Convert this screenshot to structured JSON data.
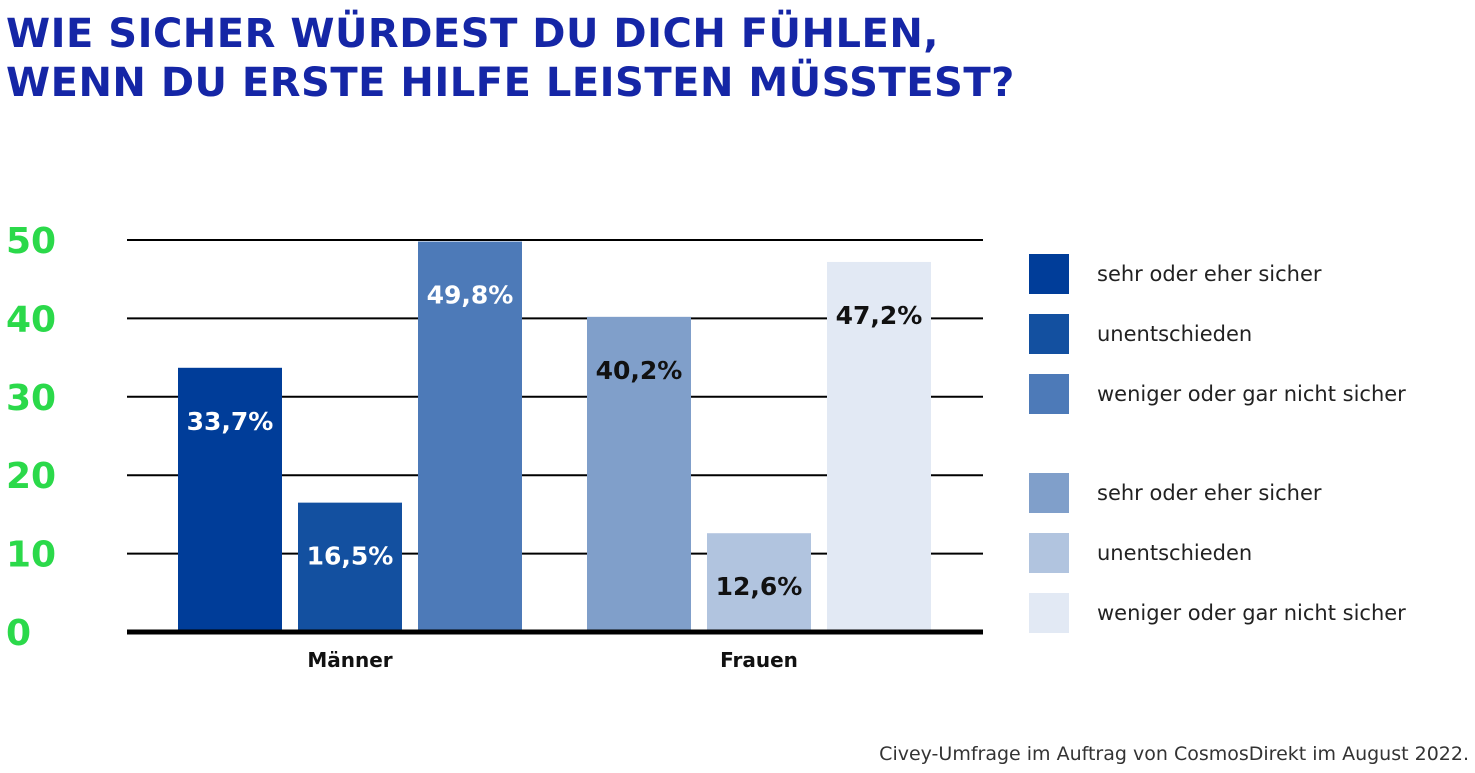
{
  "chart_data": {
    "type": "bar",
    "title": [
      "WIE SICHER WÜRDEST DU DICH FÜHLEN,",
      "WENN DU ERSTE HILFE LEISTEN MÜSSTEST?"
    ],
    "categories": [
      "Männer",
      "Frauen"
    ],
    "ylim": [
      0,
      50
    ],
    "yticks": [
      0,
      10,
      20,
      30,
      40,
      50
    ],
    "grid": true,
    "legend_position": "right",
    "groups": [
      {
        "category": "Männer",
        "bars": [
          {
            "series": "sehr oder eher sicher",
            "value": 33.7,
            "label": "33,7%",
            "color": "#003d99",
            "label_color": "#ffffff"
          },
          {
            "series": "unentschieden",
            "value": 16.5,
            "label": "16,5%",
            "color": "#1350a0",
            "label_color": "#ffffff"
          },
          {
            "series": "weniger oder gar nicht sicher",
            "value": 49.8,
            "label": "49,8%",
            "color": "#4d7ab8",
            "label_color": "#ffffff"
          }
        ]
      },
      {
        "category": "Frauen",
        "bars": [
          {
            "series": "sehr oder eher sicher",
            "value": 40.2,
            "label": "40,2%",
            "color": "#809fca",
            "label_color": "#111111"
          },
          {
            "series": "unentschieden",
            "value": 12.6,
            "label": "12,6%",
            "color": "#b1c4df",
            "label_color": "#111111"
          },
          {
            "series": "weniger oder gar nicht sicher",
            "value": 47.2,
            "label": "47,2%",
            "color": "#e2e9f4",
            "label_color": "#111111"
          }
        ]
      }
    ],
    "legend": [
      {
        "label": "sehr oder eher sicher",
        "color": "#003d99"
      },
      {
        "label": "unentschieden",
        "color": "#1350a0"
      },
      {
        "label": "weniger oder gar nicht sicher",
        "color": "#4d7ab8"
      },
      {
        "label": "sehr oder eher sicher",
        "color": "#809fca"
      },
      {
        "label": "unentschieden",
        "color": "#b1c4df"
      },
      {
        "label": "weniger oder gar nicht sicher",
        "color": "#e2e9f4"
      }
    ],
    "source": "Civey-Umfrage im Auftrag von CosmosDirekt im August 2022."
  }
}
